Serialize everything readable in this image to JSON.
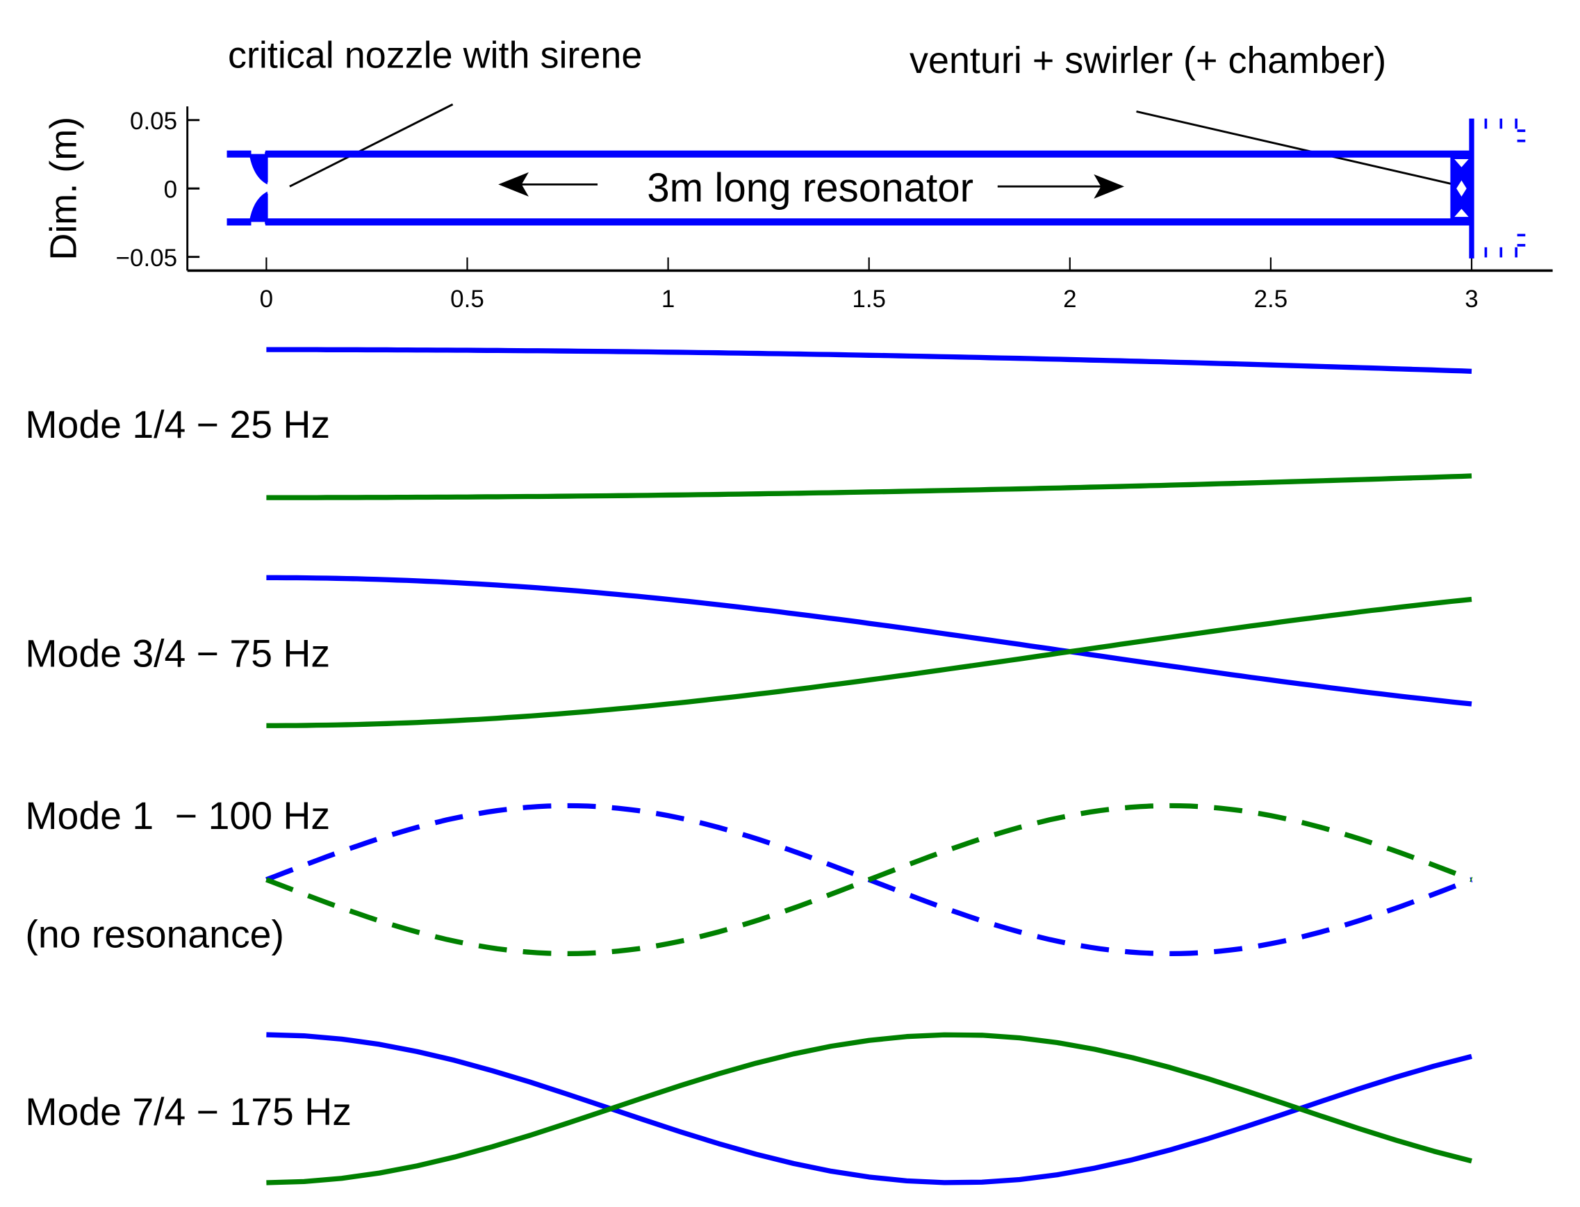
{
  "chart_data": {
    "type": "line",
    "title": "",
    "annotations": {
      "nozzle": "critical nozzle with sirene",
      "venturi": "venturi + swirler (+ chamber)",
      "resonator": "3m long resonator"
    },
    "geometry_plot": {
      "ylabel": "Dim. (m)",
      "xlim": [
        -0.1,
        3.2
      ],
      "ylim": [
        -0.06,
        0.06
      ],
      "xticks": [
        "0",
        "0.5",
        "1",
        "1.5",
        "2",
        "2.5",
        "3"
      ],
      "xtick_values": [
        0,
        0.5,
        1,
        1.5,
        2,
        2.5,
        3
      ],
      "yticks": [
        "0.05",
        "0",
        "−0.05"
      ],
      "ytick_values": [
        0.05,
        0,
        -0.05
      ],
      "tube_radius": 0.025,
      "tube_length": 3
    },
    "modes": [
      {
        "label": "Mode 1/4 − 25 Hz",
        "fraction": 0.25,
        "frequency_hz": 25,
        "shape": "cos",
        "dashed": false
      },
      {
        "label": "Mode 3/4 − 75 Hz",
        "fraction": 0.75,
        "frequency_hz": 75,
        "shape": "cos",
        "dashed": false
      },
      {
        "label": "Mode 1  − 100 Hz",
        "sublabel": "(no resonance)",
        "fraction": 1,
        "frequency_hz": 100,
        "shape": "sin",
        "dashed": true
      },
      {
        "label": "Mode 7/4 − 175 Hz",
        "fraction": 1.75,
        "frequency_hz": 175,
        "shape": "cos",
        "dashed": false
      }
    ],
    "series_colors": {
      "positive": "#0000ff",
      "negative": "#008000"
    }
  }
}
